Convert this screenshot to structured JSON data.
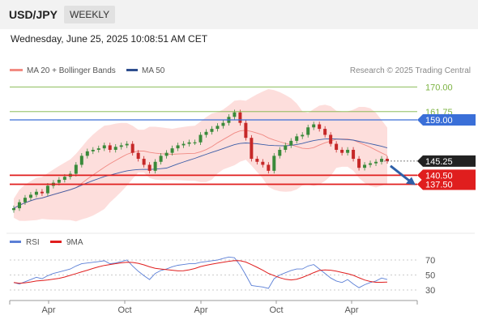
{
  "header": {
    "symbol": "USD/JPY",
    "timeframe": "WEEKLY"
  },
  "datetime": "Wednesday, June 25, 2025 10:08:51 AM CET",
  "legend": {
    "ma20": {
      "label": "MA 20 + Bollinger Bands",
      "color": "#f28b82"
    },
    "ma50": {
      "label": "MA 50",
      "color": "#2e4f8f"
    },
    "credit": "Research © 2025 Trading Central"
  },
  "rsi_legend": {
    "rsi": {
      "label": "RSI",
      "color": "#5b7fd6"
    },
    "ma9": {
      "label": "9MA",
      "color": "#e01e1e"
    }
  },
  "levels": [
    {
      "label": "170.00",
      "value": 170.0,
      "style": "green-text"
    },
    {
      "label": "161.75",
      "value": 161.75,
      "style": "green-text"
    },
    {
      "label": "159.00",
      "value": 159.0,
      "style": "blue-tag"
    },
    {
      "label": "145.25",
      "value": 145.25,
      "style": "black-tag"
    },
    {
      "label": "140.50",
      "value": 140.5,
      "style": "red-tag"
    },
    {
      "label": "137.50",
      "value": 137.5,
      "style": "red-tag"
    }
  ],
  "x_axis_labels": [
    "Apr",
    "Oct",
    "Apr",
    "Oct",
    "Apr"
  ],
  "rsi_axis_labels": [
    "70",
    "50",
    "30"
  ],
  "colors": {
    "up": "#3a8a3a",
    "down": "#c62828",
    "support": "#e01e1e",
    "resistance_blue": "#3a6fd8",
    "level_green": "#7cb342",
    "arrow": "#2e5fa8"
  },
  "chart_data": {
    "type": "candlestick",
    "symbol": "USD/JPY",
    "timeframe": "weekly",
    "close_series": [
      129.5,
      131.5,
      133.0,
      134.0,
      135.0,
      134.5,
      137.0,
      138.0,
      139.0,
      140.0,
      141.0,
      144.0,
      147.0,
      148.5,
      149.0,
      149.5,
      150.5,
      149.0,
      150.0,
      150.5,
      151.0,
      148.0,
      146.0,
      144.0,
      142.0,
      145.0,
      147.0,
      148.0,
      149.5,
      150.5,
      151.0,
      151.5,
      151.5,
      154.0,
      155.0,
      156.0,
      157.0,
      158.0,
      160.0,
      161.5,
      158.0,
      153.0,
      146.0,
      145.0,
      144.0,
      142.0,
      147.0,
      149.0,
      150.5,
      152.0,
      153.5,
      154.0,
      156.5,
      157.5,
      156.0,
      154.0,
      151.0,
      149.0,
      148.0,
      149.0,
      146.0,
      143.0,
      144.0,
      144.5,
      145.0,
      146.0,
      145.25
    ],
    "rsi_9ma": {
      "source": "RSI(14) with 9-period moving average",
      "levels": [
        70,
        50,
        30
      ],
      "rsi": [
        40,
        38,
        41,
        44,
        47,
        45,
        49,
        52,
        54,
        56,
        58,
        62,
        65,
        66,
        67,
        68,
        69,
        65,
        66,
        68,
        70,
        62,
        55,
        49,
        44,
        52,
        56,
        58,
        61,
        63,
        64,
        65,
        65,
        67,
        68,
        69,
        70,
        72,
        74,
        73,
        63,
        50,
        36,
        35,
        34,
        32,
        45,
        50,
        53,
        56,
        58,
        58,
        62,
        64,
        58,
        52,
        46,
        42,
        40,
        44,
        38,
        33,
        37,
        40,
        42,
        46,
        44
      ]
    }
  }
}
